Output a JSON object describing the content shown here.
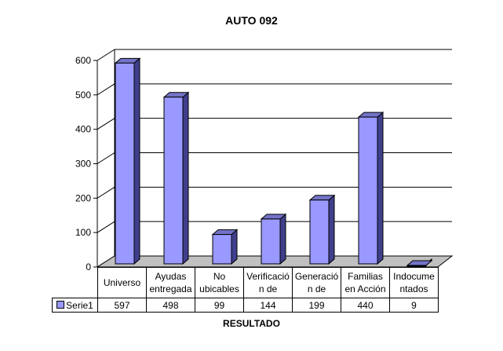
{
  "chart_data": {
    "type": "bar",
    "title": "AUTO 092",
    "xlabel": "RESULTADO",
    "ylabel": "",
    "ylim": [
      0,
      600
    ],
    "y_ticks": [
      0,
      100,
      200,
      300,
      400,
      500,
      600
    ],
    "categories": [
      "Universo",
      "Ayudas entregada",
      "No ubicables",
      "Verificació n de",
      "Generació n de",
      "Familias en Acción",
      "Indocume ntados"
    ],
    "series": [
      {
        "name": "Serie1",
        "values": [
          597,
          498,
          99,
          144,
          199,
          440,
          9
        ]
      }
    ],
    "grid": true,
    "legend": "data-table",
    "colors": {
      "bar_front": "#9999FF",
      "bar_side": "#3F3F8C",
      "bar_top": "#7373C8",
      "floor": "#C0C0C0"
    }
  }
}
